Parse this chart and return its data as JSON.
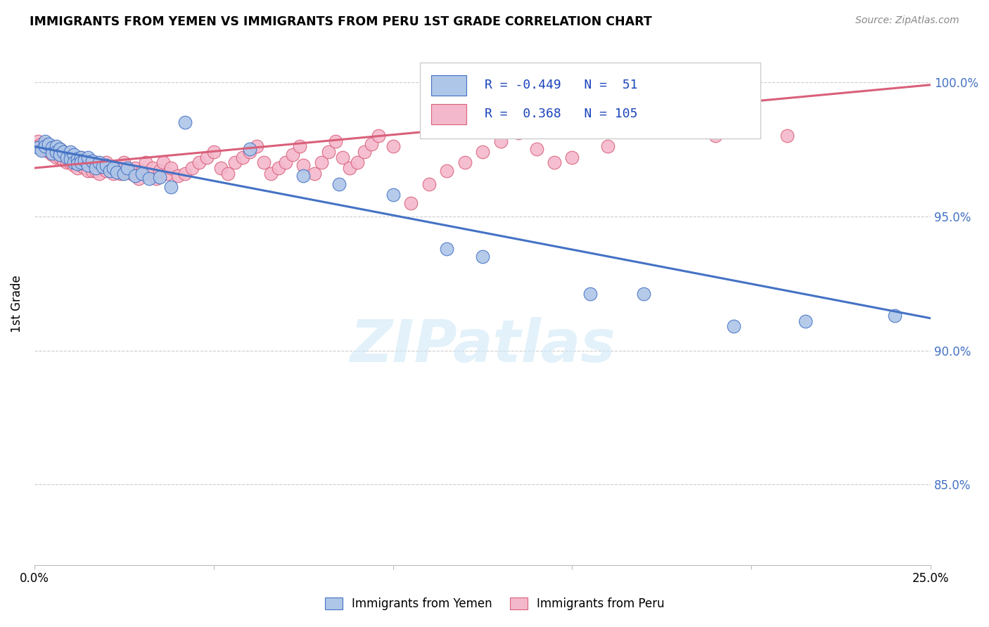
{
  "title": "IMMIGRANTS FROM YEMEN VS IMMIGRANTS FROM PERU 1ST GRADE CORRELATION CHART",
  "source": "Source: ZipAtlas.com",
  "ylabel": "1st Grade",
  "ytick_labels": [
    "100.0%",
    "95.0%",
    "90.0%",
    "85.0%"
  ],
  "ytick_values": [
    1.0,
    0.95,
    0.9,
    0.85
  ],
  "xmin": 0.0,
  "xmax": 0.25,
  "ymin": 0.82,
  "ymax": 1.015,
  "watermark": "ZIPatlas",
  "blue_color": "#aec6e8",
  "pink_color": "#f4b8cc",
  "blue_line_color": "#4472c4",
  "pink_line_color": "#d9607a",
  "blue_scatter": [
    [
      0.001,
      0.9755
    ],
    [
      0.002,
      0.9745
    ],
    [
      0.003,
      0.978
    ],
    [
      0.003,
      0.976
    ],
    [
      0.004,
      0.977
    ],
    [
      0.005,
      0.9755
    ],
    [
      0.005,
      0.9735
    ],
    [
      0.006,
      0.976
    ],
    [
      0.006,
      0.974
    ],
    [
      0.007,
      0.975
    ],
    [
      0.007,
      0.973
    ],
    [
      0.008,
      0.974
    ],
    [
      0.009,
      0.972
    ],
    [
      0.01,
      0.974
    ],
    [
      0.01,
      0.9715
    ],
    [
      0.011,
      0.973
    ],
    [
      0.011,
      0.97
    ],
    [
      0.012,
      0.9715
    ],
    [
      0.012,
      0.9695
    ],
    [
      0.013,
      0.972
    ],
    [
      0.013,
      0.97
    ],
    [
      0.014,
      0.971
    ],
    [
      0.015,
      0.969
    ],
    [
      0.015,
      0.972
    ],
    [
      0.016,
      0.9705
    ],
    [
      0.017,
      0.968
    ],
    [
      0.018,
      0.97
    ],
    [
      0.019,
      0.9685
    ],
    [
      0.02,
      0.969
    ],
    [
      0.021,
      0.967
    ],
    [
      0.022,
      0.968
    ],
    [
      0.023,
      0.9665
    ],
    [
      0.025,
      0.966
    ],
    [
      0.026,
      0.968
    ],
    [
      0.028,
      0.965
    ],
    [
      0.03,
      0.966
    ],
    [
      0.032,
      0.964
    ],
    [
      0.035,
      0.9645
    ],
    [
      0.038,
      0.961
    ],
    [
      0.042,
      0.985
    ],
    [
      0.06,
      0.975
    ],
    [
      0.075,
      0.965
    ],
    [
      0.085,
      0.962
    ],
    [
      0.1,
      0.958
    ],
    [
      0.115,
      0.938
    ],
    [
      0.125,
      0.935
    ],
    [
      0.155,
      0.921
    ],
    [
      0.17,
      0.921
    ],
    [
      0.195,
      0.909
    ],
    [
      0.215,
      0.911
    ],
    [
      0.24,
      0.913
    ]
  ],
  "pink_scatter": [
    [
      0.001,
      0.978
    ],
    [
      0.001,
      0.976
    ],
    [
      0.002,
      0.977
    ],
    [
      0.002,
      0.975
    ],
    [
      0.003,
      0.977
    ],
    [
      0.003,
      0.975
    ],
    [
      0.004,
      0.976
    ],
    [
      0.004,
      0.974
    ],
    [
      0.005,
      0.976
    ],
    [
      0.005,
      0.973
    ],
    [
      0.006,
      0.974
    ],
    [
      0.006,
      0.972
    ],
    [
      0.007,
      0.975
    ],
    [
      0.007,
      0.972
    ],
    [
      0.008,
      0.974
    ],
    [
      0.008,
      0.971
    ],
    [
      0.009,
      0.972
    ],
    [
      0.009,
      0.97
    ],
    [
      0.01,
      0.973
    ],
    [
      0.01,
      0.97
    ],
    [
      0.011,
      0.972
    ],
    [
      0.011,
      0.969
    ],
    [
      0.012,
      0.971
    ],
    [
      0.012,
      0.968
    ],
    [
      0.013,
      0.972
    ],
    [
      0.013,
      0.969
    ],
    [
      0.014,
      0.97
    ],
    [
      0.014,
      0.968
    ],
    [
      0.015,
      0.97
    ],
    [
      0.015,
      0.967
    ],
    [
      0.016,
      0.97
    ],
    [
      0.016,
      0.967
    ],
    [
      0.017,
      0.97
    ],
    [
      0.017,
      0.967
    ],
    [
      0.018,
      0.969
    ],
    [
      0.018,
      0.966
    ],
    [
      0.019,
      0.968
    ],
    [
      0.02,
      0.97
    ],
    [
      0.02,
      0.967
    ],
    [
      0.021,
      0.968
    ],
    [
      0.022,
      0.966
    ],
    [
      0.023,
      0.968
    ],
    [
      0.024,
      0.966
    ],
    [
      0.025,
      0.97
    ],
    [
      0.026,
      0.967
    ],
    [
      0.027,
      0.966
    ],
    [
      0.028,
      0.968
    ],
    [
      0.029,
      0.964
    ],
    [
      0.03,
      0.967
    ],
    [
      0.031,
      0.97
    ],
    [
      0.032,
      0.966
    ],
    [
      0.033,
      0.968
    ],
    [
      0.034,
      0.964
    ],
    [
      0.035,
      0.967
    ],
    [
      0.036,
      0.97
    ],
    [
      0.037,
      0.966
    ],
    [
      0.038,
      0.968
    ],
    [
      0.04,
      0.965
    ],
    [
      0.042,
      0.966
    ],
    [
      0.044,
      0.968
    ],
    [
      0.046,
      0.97
    ],
    [
      0.048,
      0.972
    ],
    [
      0.05,
      0.974
    ],
    [
      0.052,
      0.968
    ],
    [
      0.054,
      0.966
    ],
    [
      0.056,
      0.97
    ],
    [
      0.058,
      0.972
    ],
    [
      0.06,
      0.974
    ],
    [
      0.062,
      0.976
    ],
    [
      0.064,
      0.97
    ],
    [
      0.066,
      0.966
    ],
    [
      0.068,
      0.968
    ],
    [
      0.07,
      0.97
    ],
    [
      0.072,
      0.973
    ],
    [
      0.074,
      0.976
    ],
    [
      0.075,
      0.969
    ],
    [
      0.078,
      0.966
    ],
    [
      0.08,
      0.97
    ],
    [
      0.082,
      0.974
    ],
    [
      0.084,
      0.978
    ],
    [
      0.086,
      0.972
    ],
    [
      0.088,
      0.968
    ],
    [
      0.09,
      0.97
    ],
    [
      0.092,
      0.974
    ],
    [
      0.094,
      0.977
    ],
    [
      0.096,
      0.98
    ],
    [
      0.1,
      0.976
    ],
    [
      0.105,
      0.955
    ],
    [
      0.11,
      0.962
    ],
    [
      0.115,
      0.967
    ],
    [
      0.12,
      0.97
    ],
    [
      0.125,
      0.974
    ],
    [
      0.13,
      0.978
    ],
    [
      0.135,
      0.981
    ],
    [
      0.14,
      0.975
    ],
    [
      0.145,
      0.97
    ],
    [
      0.15,
      0.972
    ],
    [
      0.16,
      0.976
    ],
    [
      0.17,
      0.982
    ],
    [
      0.18,
      0.986
    ],
    [
      0.19,
      0.98
    ],
    [
      0.2,
      0.984
    ],
    [
      0.21,
      0.98
    ]
  ],
  "blue_line_x": [
    0.0,
    0.25
  ],
  "blue_line_y": [
    0.976,
    0.912
  ],
  "pink_line_x": [
    0.0,
    0.25
  ],
  "pink_line_y": [
    0.968,
    0.999
  ]
}
